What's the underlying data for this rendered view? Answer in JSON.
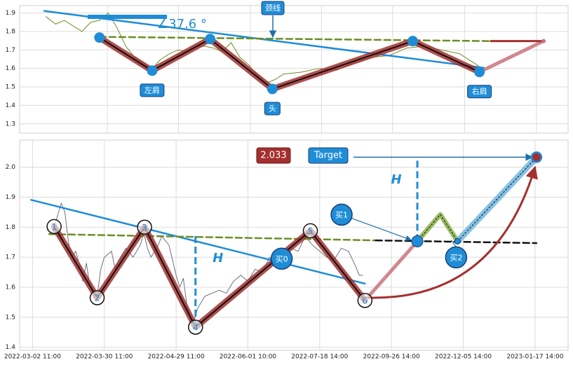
{
  "chart_data": [
    {
      "type": "line",
      "xlim": [
        -61,
        564
      ],
      "ylim": [
        1.25,
        1.94
      ],
      "yticks": [
        1.3,
        1.4,
        1.5,
        1.6,
        1.7,
        1.8,
        1.9
      ],
      "xticks": [
        39,
        120,
        202,
        283,
        364,
        446,
        528
      ],
      "show_xtick_labels": false,
      "grid": true,
      "angle_label": "∠37.6 °",
      "neckline_label": "颈线",
      "series": [
        {
          "style": "price",
          "color": "#6b8e23",
          "x": [
            -31,
            -20,
            -10,
            0,
            10,
            20,
            30,
            40,
            50,
            60,
            70,
            80,
            90,
            100,
            110,
            120,
            130,
            140,
            150,
            160,
            170,
            180,
            190,
            200,
            210,
            220,
            230,
            240,
            260,
            280,
            300,
            320,
            340,
            360,
            380,
            400,
            420,
            440,
            460,
            465
          ],
          "values": [
            1.88,
            1.84,
            1.86,
            1.83,
            1.8,
            1.85,
            1.86,
            1.9,
            1.82,
            1.72,
            1.66,
            1.63,
            1.6,
            1.65,
            1.68,
            1.7,
            1.69,
            1.72,
            1.72,
            1.71,
            1.69,
            1.74,
            1.66,
            1.62,
            1.56,
            1.52,
            1.54,
            1.57,
            1.58,
            1.6,
            1.59,
            1.63,
            1.66,
            1.67,
            1.71,
            1.72,
            1.7,
            1.68,
            1.62,
            1.6
          ]
        },
        {
          "style": "trend",
          "color": "#1f8dd6",
          "x": [
            -33,
            468
          ],
          "values": [
            1.911,
            1.603
          ]
        },
        {
          "style": "neckline",
          "color": "#6b8e23",
          "x": [
            30,
            476
          ],
          "values": [
            1.771,
            1.748
          ]
        },
        {
          "style": "pattern",
          "color": "#a3302f",
          "marker_color": "#1f8dd6",
          "x": [
            30,
            90,
            156,
            227,
            387,
            463
          ],
          "values": [
            1.767,
            1.588,
            1.759,
            1.489,
            1.748,
            1.581
          ],
          "point_labels": [
            null,
            "左肩",
            null,
            "头",
            null,
            "右肩"
          ]
        },
        {
          "style": "projection",
          "color": "#c9737a",
          "x": [
            463,
            536
          ],
          "values": [
            1.581,
            1.748
          ]
        },
        {
          "style": "target",
          "color": "#a3302f",
          "x": [
            476,
            536
          ],
          "values": [
            1.748,
            1.748
          ]
        }
      ]
    },
    {
      "type": "line",
      "xlim": [
        -18,
        746
      ],
      "ylim": [
        1.39,
        2.09
      ],
      "yticks": [
        1.4,
        1.5,
        1.6,
        1.7,
        1.8,
        1.9,
        {
          "value": 2.0,
          "label": "2.0"
        }
      ],
      "xticks": [
        {
          "value": 0,
          "label": "2022-03-02 11:00"
        },
        {
          "value": 100,
          "label": "2022-03-30 11:00"
        },
        {
          "value": 200,
          "label": "2022-04-29 11:00"
        },
        {
          "value": 300,
          "label": "2022-06-01 10:00"
        },
        {
          "value": 400,
          "label": "2022-07-18 14:00"
        },
        {
          "value": 500,
          "label": "2022-09-26 14:00"
        },
        {
          "value": 600,
          "label": "2022-12-05 14:00"
        },
        {
          "value": 700,
          "label": "2023-01-17 14:00"
        }
      ],
      "show_xtick_labels": true,
      "grid": true,
      "series": [
        {
          "style": "price",
          "color": "#6b7280",
          "x": [
            20,
            28,
            35,
            40,
            45,
            50,
            55,
            60,
            65,
            70,
            75,
            80,
            85,
            90,
            95,
            100,
            110,
            115,
            120,
            130,
            140,
            150,
            155,
            160,
            165,
            175,
            180,
            190,
            195,
            200,
            205,
            210,
            215,
            220,
            225,
            230,
            240,
            250,
            260,
            270,
            280,
            290,
            300,
            310,
            320,
            330,
            340,
            350,
            360,
            370,
            380,
            390,
            400,
            410,
            420,
            430,
            440,
            450,
            455,
            460
          ],
          "values": [
            1.8,
            1.78,
            1.84,
            1.88,
            1.85,
            1.75,
            1.7,
            1.72,
            1.68,
            1.62,
            1.68,
            1.6,
            1.58,
            1.57,
            1.66,
            1.7,
            1.72,
            1.66,
            1.69,
            1.73,
            1.7,
            1.74,
            1.78,
            1.73,
            1.7,
            1.74,
            1.77,
            1.74,
            1.69,
            1.64,
            1.6,
            1.63,
            1.54,
            1.5,
            1.49,
            1.53,
            1.57,
            1.58,
            1.59,
            1.58,
            1.62,
            1.64,
            1.62,
            1.66,
            1.65,
            1.7,
            1.67,
            1.71,
            1.73,
            1.72,
            1.77,
            1.74,
            1.72,
            1.7,
            1.69,
            1.73,
            1.72,
            1.67,
            1.64,
            1.64
          ]
        },
        {
          "style": "trend",
          "color": "#1f8dd6",
          "x": [
            -2,
            463
          ],
          "values": [
            1.891,
            1.612
          ]
        },
        {
          "style": "neckline",
          "color": "#6b8e23",
          "x": [
            23,
            478
          ],
          "values": [
            1.777,
            1.756
          ]
        },
        {
          "style": "neckline",
          "color": "#111111",
          "x": [
            478,
            702
          ],
          "values": [
            1.756,
            1.747
          ]
        },
        {
          "style": "pattern",
          "color": "#a3302f",
          "marker_color": "#111111",
          "x": [
            30,
            90,
            156,
            227,
            387,
            463
          ],
          "values": [
            1.802,
            1.565,
            1.8,
            1.467,
            1.788,
            1.556
          ],
          "point_labels": [
            "1",
            "2",
            "3",
            "4",
            "5",
            "6"
          ]
        },
        {
          "style": "projection",
          "color": "#c9737a",
          "x": [
            463,
            536
          ],
          "values": [
            1.556,
            1.753
          ]
        },
        {
          "style": "zigzag",
          "color": "#8ab04a",
          "x": [
            536,
            568,
            592
          ],
          "values": [
            1.753,
            1.842,
            1.753
          ]
        },
        {
          "style": "rise",
          "color": "#6fb6e0",
          "x": [
            592,
            702
          ],
          "values": [
            1.753,
            2.033
          ]
        }
      ],
      "buy_points": [
        {
          "label": "买0",
          "x": 347,
          "value": 1.695
        },
        {
          "label": "买1",
          "x": 536,
          "value": 1.753
        },
        {
          "label": "买2",
          "x": 592,
          "value": 1.753
        }
      ],
      "heights": [
        {
          "label": "H",
          "x": 227,
          "from": 1.467,
          "to": 1.772
        },
        {
          "label": "H",
          "x": 536,
          "from": 1.753,
          "to": 2.033
        }
      ],
      "target": {
        "label": "Target",
        "value": 2.033,
        "value_label": "2.033",
        "x": 702,
        "from_x": 447
      }
    }
  ]
}
